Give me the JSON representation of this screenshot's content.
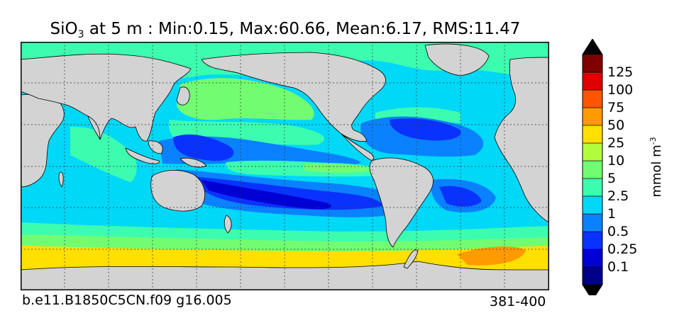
{
  "title": {
    "variable": "SiO",
    "subscript": "3",
    "rest": " at 5 m : Min:0.15, Max:60.66, Mean:6.17, RMS:11.47"
  },
  "footer": {
    "run_id": "b.e11.B1850C5CN.f09 g16.005",
    "years": "381-400"
  },
  "colorbar": {
    "unit_base": "mmol m",
    "unit_exp": "-3",
    "levels": [
      "0.1",
      "0.25",
      "0.5",
      "1",
      "2.5",
      "5",
      "10",
      "25",
      "50",
      "75",
      "100",
      "125"
    ],
    "colors": [
      "#00008a",
      "#0000d4",
      "#0a32ff",
      "#0a82ff",
      "#00d8f8",
      "#3cfcb0",
      "#72fc72",
      "#b2fc3c",
      "#ffe000",
      "#ff9a00",
      "#ff5500",
      "#e00000",
      "#800000"
    ]
  },
  "map": {
    "land_color": "#d3d3d3",
    "ocean_colors": {
      "low": "#0000d4",
      "lowmid": "#0a32ff",
      "mid": "#0a82ff",
      "cyan": "#00d8f8",
      "mint": "#3cfcb0",
      "green": "#72fc72",
      "yellow": "#ffe000",
      "orange": "#ff9a00"
    }
  }
}
